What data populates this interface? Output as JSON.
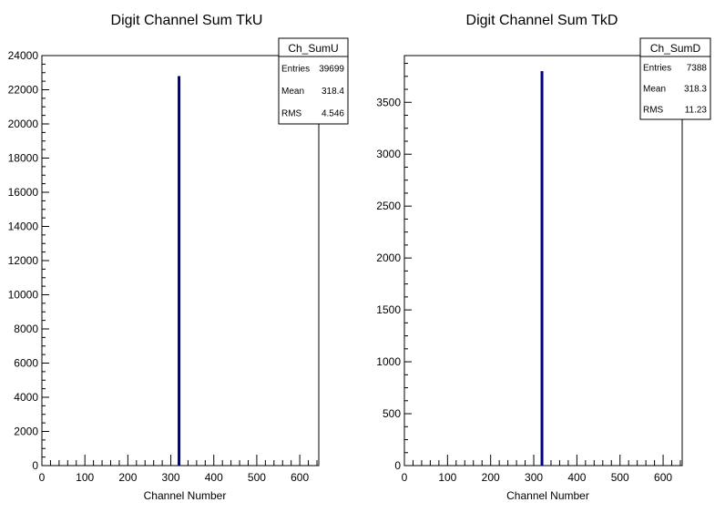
{
  "chart_data": [
    {
      "type": "bar",
      "title": "Digit Channel Sum TkU",
      "xlabel": "Channel Number",
      "ylabel": "",
      "xlim": [
        0,
        640
      ],
      "ylim": [
        0,
        24000
      ],
      "x_ticks": [
        0,
        100,
        200,
        300,
        400,
        500,
        600
      ],
      "y_ticks": [
        0,
        2000,
        4000,
        6000,
        8000,
        10000,
        12000,
        14000,
        16000,
        18000,
        20000,
        22000,
        24000
      ],
      "series": [
        {
          "x": [
            318
          ],
          "values": [
            22800
          ],
          "color": "#000080"
        }
      ],
      "stats": {
        "name": "Ch_SumU",
        "rows": [
          {
            "label": "Entries",
            "value": "39699"
          },
          {
            "label": "Mean",
            "value": "318.4"
          },
          {
            "label": "RMS",
            "value": "4.546"
          }
        ]
      }
    },
    {
      "type": "bar",
      "title": "Digit Channel Sum TkD",
      "xlabel": "Channel Number",
      "ylabel": "",
      "xlim": [
        0,
        640
      ],
      "ylim": [
        0,
        3950
      ],
      "x_ticks": [
        0,
        100,
        200,
        300,
        400,
        500,
        600
      ],
      "y_ticks": [
        0,
        500,
        1000,
        1500,
        2000,
        2500,
        3000,
        3500
      ],
      "series": [
        {
          "x": [
            318
          ],
          "values": [
            3800
          ],
          "color": "#000080"
        }
      ],
      "stats": {
        "name": "Ch_SumD",
        "rows": [
          {
            "label": "Entries",
            "value": "7388"
          },
          {
            "label": "Mean",
            "value": "318.3"
          },
          {
            "label": "RMS",
            "value": "11.23"
          }
        ]
      }
    }
  ]
}
